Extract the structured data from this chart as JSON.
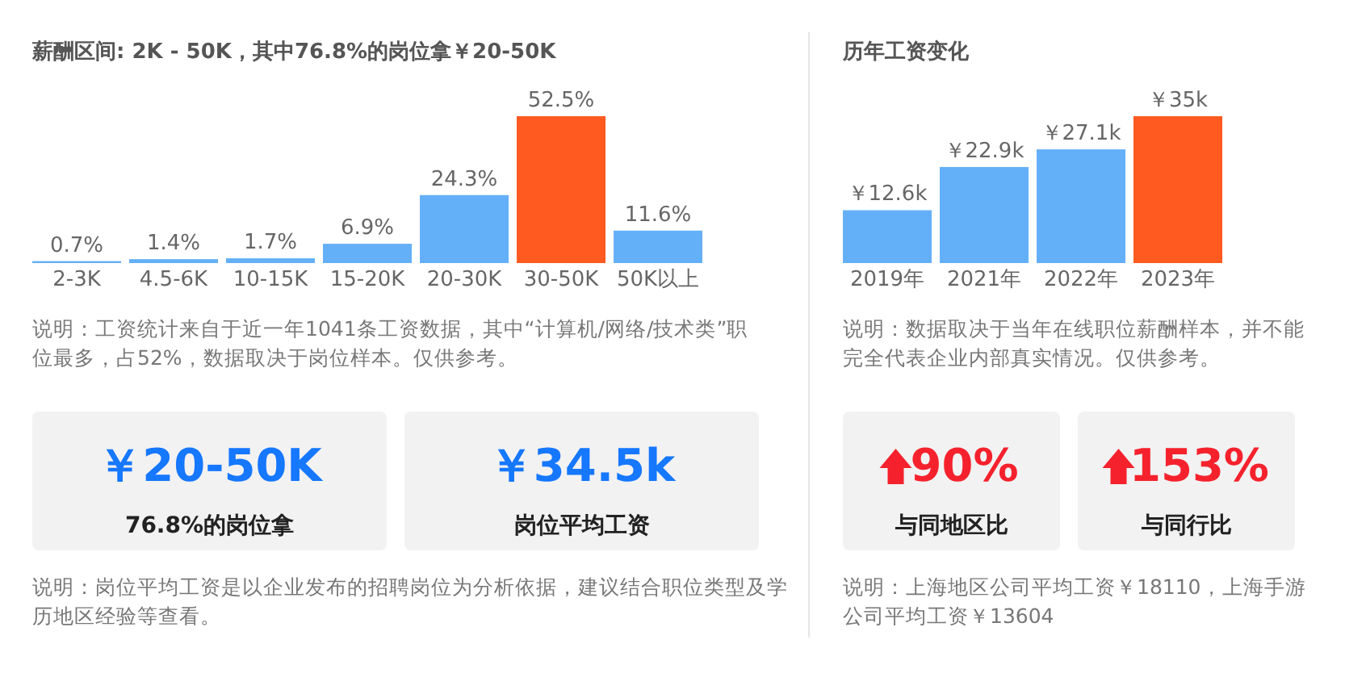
{
  "chart_data": [
    {
      "type": "bar",
      "title": "薪酬区间: 2K - 50K，其中76.8%的岗位拿￥20-50K",
      "categories": [
        "2-3K",
        "4.5-6K",
        "10-15K",
        "15-20K",
        "20-30K",
        "30-50K",
        "50K以上"
      ],
      "values": [
        0.7,
        1.4,
        1.7,
        6.9,
        24.3,
        52.5,
        11.6
      ],
      "value_labels": [
        "0.7%",
        "1.4%",
        "1.7%",
        "6.9%",
        "24.3%",
        "52.5%",
        "11.6%"
      ],
      "colors": [
        "#64b0f8",
        "#64b0f8",
        "#64b0f8",
        "#64b0f8",
        "#64b0f8",
        "#ff5a1f",
        "#64b0f8"
      ],
      "annotations": [
        "说明：工资统计来自于近一年1041条工资数据，其中“计算机/网络/技术类”职位最多，占52%，数据取决于岗位样本。仅供参考。"
      ]
    },
    {
      "type": "bar",
      "title": "历年工资变化",
      "categories": [
        "2019年",
        "2021年",
        "2022年",
        "2023年"
      ],
      "values": [
        12.6,
        22.9,
        27.1,
        35
      ],
      "value_labels": [
        "￥12.6k",
        "￥22.9k",
        "￥27.1k",
        "￥35k"
      ],
      "colors": [
        "#64b0f8",
        "#64b0f8",
        "#64b0f8",
        "#ff5a1f"
      ],
      "annotations": [
        "说明：数据取决于当年在线职位薪酬样本，并不能完全代表企业内部真实情况。仅供参考。"
      ]
    },
    {
      "type": "other",
      "categories": [
        "76.8%的岗位拿",
        "岗位平均工资"
      ],
      "value_labels": [
        "￥20-50K",
        "￥34.5k"
      ],
      "color": "#1677ff",
      "annotations": [
        "说明：岗位平均工资是以企业发布的招聘岗位为分析依据，建议结合职位类型及学历地区经验等查看。"
      ]
    },
    {
      "type": "other",
      "categories": [
        "与同地区比",
        "与同行比"
      ],
      "value_labels": [
        "90%",
        "153%"
      ],
      "color": "#f5222d",
      "annotations": [
        "说明：上海地区公司平均工资￥18110，上海手游公司平均工资￥13604"
      ]
    }
  ]
}
